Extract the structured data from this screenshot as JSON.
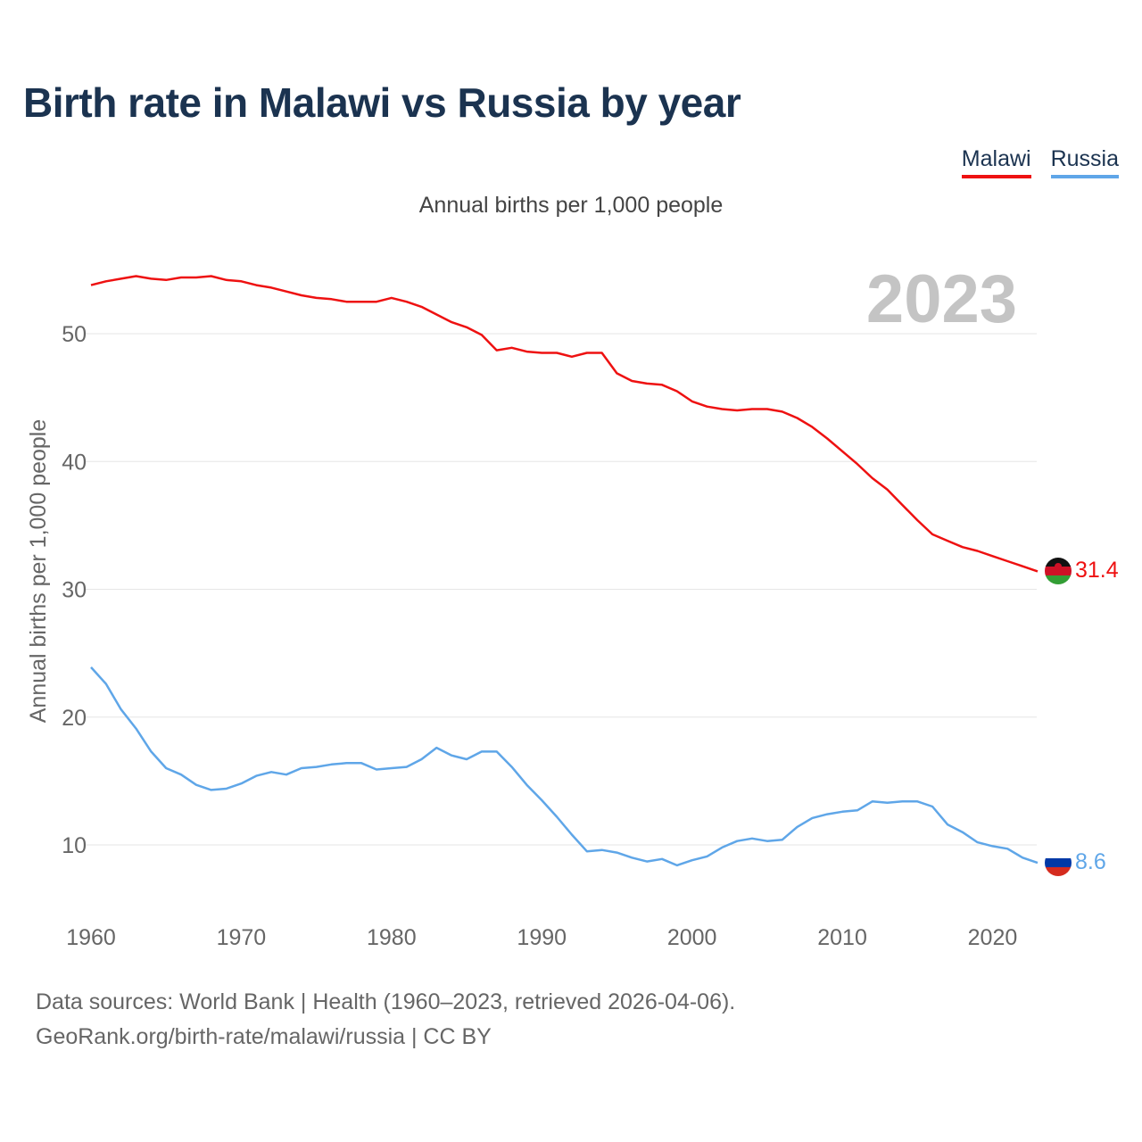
{
  "title": "Birth rate in Malawi vs Russia by year",
  "colors": {
    "malawi": "#ee1111",
    "russia": "#5fa6e8",
    "text": "#1b3350",
    "grid": "#e6e6e6",
    "year": "#c4c4c4"
  },
  "footer": {
    "line1": "Data sources: World Bank | Health (1960–2023, retrieved 2026-04-06).",
    "line2": "GeoRank.org/birth-rate/malawi/russia | CC BY"
  },
  "chart_data": {
    "type": "line",
    "title": "Annual births per 1,000 people",
    "xlabel": "",
    "ylabel": "Annual births per 1,000 people",
    "xlim": [
      1960,
      2023
    ],
    "ylim": [
      5,
      58
    ],
    "yticks": [
      10,
      20,
      30,
      40,
      50
    ],
    "xticks": [
      1960,
      1970,
      1980,
      1990,
      2000,
      2010,
      2020
    ],
    "year_label": "2023",
    "legend_position": "top-right",
    "x": [
      1960,
      1961,
      1962,
      1963,
      1964,
      1965,
      1966,
      1967,
      1968,
      1969,
      1970,
      1971,
      1972,
      1973,
      1974,
      1975,
      1976,
      1977,
      1978,
      1979,
      1980,
      1981,
      1982,
      1983,
      1984,
      1985,
      1986,
      1987,
      1988,
      1989,
      1990,
      1991,
      1992,
      1993,
      1994,
      1995,
      1996,
      1997,
      1998,
      1999,
      2000,
      2001,
      2002,
      2003,
      2004,
      2005,
      2006,
      2007,
      2008,
      2009,
      2010,
      2011,
      2012,
      2013,
      2014,
      2015,
      2016,
      2017,
      2018,
      2019,
      2020,
      2021,
      2022,
      2023
    ],
    "series": [
      {
        "name": "Malawi",
        "color": "#ee1111",
        "end_label": "31.4",
        "values": [
          53.8,
          54.1,
          54.3,
          54.5,
          54.3,
          54.2,
          54.4,
          54.4,
          54.5,
          54.2,
          54.1,
          53.8,
          53.6,
          53.3,
          53.0,
          52.8,
          52.7,
          52.5,
          52.5,
          52.5,
          52.8,
          52.5,
          52.1,
          51.5,
          50.9,
          50.5,
          49.9,
          48.7,
          48.9,
          48.6,
          48.5,
          48.5,
          48.2,
          48.5,
          48.5,
          46.9,
          46.3,
          46.1,
          46.0,
          45.5,
          44.7,
          44.3,
          44.1,
          44.0,
          44.1,
          44.1,
          43.9,
          43.4,
          42.7,
          41.8,
          40.8,
          39.8,
          38.7,
          37.8,
          36.6,
          35.4,
          34.3,
          33.8,
          33.3,
          33.0,
          32.6,
          32.2,
          31.8,
          31.4
        ]
      },
      {
        "name": "Russia",
        "color": "#5fa6e8",
        "end_label": "8.6",
        "values": [
          23.9,
          22.6,
          20.6,
          19.1,
          17.3,
          16.0,
          15.5,
          14.7,
          14.3,
          14.4,
          14.8,
          15.4,
          15.7,
          15.5,
          16.0,
          16.1,
          16.3,
          16.4,
          16.4,
          15.9,
          16.0,
          16.1,
          16.7,
          17.6,
          17.0,
          16.7,
          17.3,
          17.3,
          16.1,
          14.7,
          13.5,
          12.2,
          10.8,
          9.5,
          9.6,
          9.4,
          9.0,
          8.7,
          8.9,
          8.4,
          8.8,
          9.1,
          9.8,
          10.3,
          10.5,
          10.3,
          10.4,
          11.4,
          12.1,
          12.4,
          12.6,
          12.7,
          13.4,
          13.3,
          13.4,
          13.4,
          13.0,
          11.6,
          11.0,
          10.2,
          9.9,
          9.7,
          9.0,
          8.6
        ]
      }
    ]
  }
}
